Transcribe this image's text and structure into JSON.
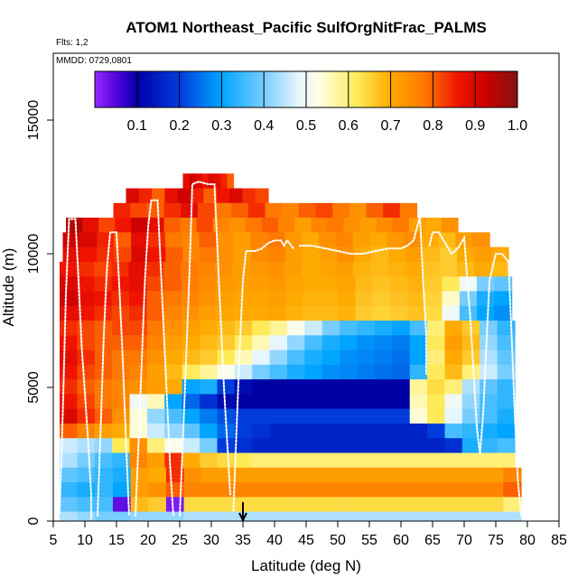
{
  "chart_data": {
    "type": "heatmap",
    "title": "ATOM1 Northeast_Pacific SulfOrgNitFrac_PALMS",
    "flights_label": "Flts: 1,2",
    "dates_label": "MMDD: 0729,0801",
    "xlabel": "Latitude (deg N)",
    "ylabel": "Altitude (m)",
    "xlim": [
      5,
      85
    ],
    "ylim": [
      0,
      17500
    ],
    "x_ticks": [
      "5",
      "10",
      "15",
      "20",
      "25",
      "30",
      "35",
      "40",
      "45",
      "50",
      "55",
      "60",
      "65",
      "70",
      "75",
      "80",
      "85"
    ],
    "y_ticks": [
      "0",
      "5000",
      "10000",
      "15000"
    ],
    "colorbar": {
      "range": [
        0.0,
        1.0
      ],
      "tick_labels": [
        "0.1",
        "0.2",
        "0.3",
        "0.4",
        "0.5",
        "0.6",
        "0.7",
        "0.8",
        "0.9",
        "1.0"
      ]
    },
    "marker": {
      "latitude": 35,
      "symbol": "arrow"
    },
    "rows": [
      {
        "alt": [
          12450,
          13000
        ],
        "lat": [
          25.5,
          33.5
        ],
        "vals": [
          0.88,
          0.92,
          0.9,
          0.86,
          0.9,
          0.88,
          0.85,
          0.8
        ]
      },
      {
        "alt": [
          11900,
          12450
        ],
        "lat": [
          16.5,
          39
        ],
        "vals": [
          0.9,
          0.85,
          0.8,
          0.88,
          0.92,
          0.85,
          0.8,
          0.86,
          0.9,
          0.84,
          0.82
        ]
      },
      {
        "alt": [
          11350,
          11900
        ],
        "lat": [
          14.5,
          62.5
        ],
        "vals": [
          0.85,
          0.82,
          0.8,
          0.84,
          0.88,
          0.82,
          0.78,
          0.8,
          0.84,
          0.78,
          0.76,
          0.8,
          0.82,
          0.78,
          0.74,
          0.8,
          0.84,
          0.78
        ]
      },
      {
        "alt": [
          10800,
          11350
        ],
        "lat": [
          7,
          69
        ],
        "vals": [
          0.95,
          0.88,
          0.82,
          0.86,
          0.92,
          0.88,
          0.8,
          0.78,
          0.82,
          0.76,
          0.74,
          0.78,
          0.8,
          0.76,
          0.72,
          0.76,
          0.78,
          0.74,
          0.72,
          0.75,
          0.78,
          0.72,
          0.7,
          0.74
        ]
      },
      {
        "alt": [
          10250,
          10800
        ],
        "lat": [
          6.5,
          74
        ],
        "vals": [
          0.92,
          0.9,
          0.85,
          0.8,
          0.88,
          0.84,
          0.78,
          0.76,
          0.8,
          0.74,
          0.72,
          0.76,
          0.78,
          0.73,
          0.7,
          0.74,
          0.76,
          0.72,
          0.7,
          0.73,
          0.75,
          0.7,
          0.68,
          0.72,
          0.74
        ]
      },
      {
        "alt": [
          9700,
          10250
        ],
        "lat": [
          6.5,
          77
        ],
        "vals": [
          0.88,
          0.86,
          0.84,
          0.82,
          0.9,
          0.86,
          0.8,
          0.76,
          0.78,
          0.74,
          0.72,
          0.75,
          0.76,
          0.72,
          0.7,
          0.72,
          0.74,
          0.7,
          0.68,
          0.7,
          0.72,
          0.68,
          0.66,
          0.7,
          0.72,
          0.7
        ]
      },
      {
        "alt": [
          9150,
          9700
        ],
        "lat": [
          6,
          77
        ],
        "vals": [
          0.86,
          0.84,
          0.82,
          0.84,
          0.88,
          0.84,
          0.8,
          0.78,
          0.76,
          0.74,
          0.72,
          0.73,
          0.74,
          0.72,
          0.7,
          0.71,
          0.72,
          0.69,
          0.68,
          0.69,
          0.7,
          0.67,
          0.66,
          0.68,
          0.7,
          0.68
        ]
      },
      {
        "alt": [
          8600,
          9150
        ],
        "lat": [
          6,
          77.5
        ],
        "vals": [
          0.9,
          0.86,
          0.84,
          0.86,
          0.88,
          0.82,
          0.8,
          0.77,
          0.75,
          0.73,
          0.72,
          0.72,
          0.73,
          0.71,
          0.7,
          0.7,
          0.71,
          0.68,
          0.67,
          0.68,
          0.69,
          0.66,
          0.62,
          0.5,
          0.4,
          0.38
        ]
      },
      {
        "alt": [
          8050,
          8600
        ],
        "lat": [
          6,
          77.5
        ],
        "vals": [
          0.92,
          0.88,
          0.86,
          0.84,
          0.86,
          0.8,
          0.78,
          0.76,
          0.74,
          0.72,
          0.71,
          0.71,
          0.72,
          0.7,
          0.69,
          0.69,
          0.7,
          0.67,
          0.66,
          0.67,
          0.68,
          0.65,
          0.55,
          0.4,
          0.32,
          0.3
        ]
      },
      {
        "alt": [
          7500,
          8050
        ],
        "lat": [
          6,
          77.5
        ],
        "vals": [
          0.88,
          0.86,
          0.84,
          0.82,
          0.84,
          0.8,
          0.76,
          0.74,
          0.72,
          0.71,
          0.7,
          0.7,
          0.71,
          0.69,
          0.68,
          0.68,
          0.69,
          0.66,
          0.65,
          0.66,
          0.67,
          0.64,
          0.5,
          0.36,
          0.3,
          0.28
        ]
      },
      {
        "alt": [
          6950,
          7500
        ],
        "lat": [
          6,
          78
        ],
        "vals": [
          0.84,
          0.82,
          0.8,
          0.82,
          0.82,
          0.78,
          0.74,
          0.72,
          0.7,
          0.68,
          0.66,
          0.62,
          0.58,
          0.52,
          0.46,
          0.4,
          0.36,
          0.34,
          0.32,
          0.3,
          0.36,
          0.6,
          0.7,
          0.66,
          0.4,
          0.34
        ]
      },
      {
        "alt": [
          6400,
          6950
        ],
        "lat": [
          6,
          78
        ],
        "vals": [
          0.86,
          0.82,
          0.8,
          0.8,
          0.8,
          0.76,
          0.72,
          0.7,
          0.68,
          0.66,
          0.62,
          0.56,
          0.48,
          0.42,
          0.36,
          0.32,
          0.3,
          0.28,
          0.27,
          0.26,
          0.3,
          0.62,
          0.72,
          0.68,
          0.42,
          0.36
        ]
      },
      {
        "alt": [
          5850,
          6400
        ],
        "lat": [
          6,
          78
        ],
        "vals": [
          0.88,
          0.84,
          0.8,
          0.78,
          0.78,
          0.74,
          0.7,
          0.68,
          0.66,
          0.62,
          0.56,
          0.48,
          0.42,
          0.36,
          0.32,
          0.3,
          0.28,
          0.27,
          0.26,
          0.25,
          0.3,
          0.6,
          0.7,
          0.66,
          0.44,
          0.38
        ]
      },
      {
        "alt": [
          5300,
          5850
        ],
        "lat": [
          6,
          78
        ],
        "vals": [
          0.86,
          0.82,
          0.8,
          0.78,
          0.76,
          0.72,
          0.68,
          0.62,
          0.58,
          0.52,
          0.46,
          0.4,
          0.36,
          0.32,
          0.3,
          0.28,
          0.27,
          0.26,
          0.25,
          0.24,
          0.34,
          0.62,
          0.68,
          0.6,
          0.46,
          0.4
        ]
      },
      {
        "alt": [
          4750,
          5300
        ],
        "lat": [
          6,
          78
        ],
        "vals": [
          0.84,
          0.8,
          0.78,
          0.76,
          0.74,
          0.72,
          0.7,
          0.3,
          0.32,
          0.2,
          0.12,
          0.1,
          0.1,
          0.1,
          0.1,
          0.1,
          0.1,
          0.1,
          0.1,
          0.1,
          0.58,
          0.64,
          0.6,
          0.44,
          0.38,
          0.34
        ]
      },
      {
        "alt": [
          4200,
          4750
        ],
        "lat": [
          6,
          78
        ],
        "vals": [
          0.86,
          0.82,
          0.78,
          0.76,
          0.5,
          0.56,
          0.3,
          0.24,
          0.18,
          0.12,
          0.1,
          0.1,
          0.1,
          0.1,
          0.1,
          0.1,
          0.1,
          0.1,
          0.1,
          0.1,
          0.56,
          0.62,
          0.5,
          0.42,
          0.36,
          0.34
        ]
      },
      {
        "alt": [
          3650,
          4200
        ],
        "lat": [
          6,
          78
        ],
        "vals": [
          0.9,
          0.84,
          0.8,
          0.74,
          0.54,
          0.42,
          0.36,
          0.3,
          0.26,
          0.22,
          0.2,
          0.2,
          0.2,
          0.2,
          0.2,
          0.2,
          0.2,
          0.2,
          0.2,
          0.2,
          0.54,
          0.62,
          0.48,
          0.4,
          0.36,
          0.32
        ]
      },
      {
        "alt": [
          3100,
          3650
        ],
        "lat": [
          6,
          78
        ],
        "vals": [
          0.8,
          0.76,
          0.72,
          0.7,
          0.54,
          0.46,
          0.42,
          0.38,
          0.3,
          0.24,
          0.2,
          0.18,
          0.16,
          0.16,
          0.16,
          0.16,
          0.16,
          0.16,
          0.16,
          0.16,
          0.16,
          0.2,
          0.36,
          0.34,
          0.32,
          0.3
        ]
      },
      {
        "alt": [
          2550,
          3100
        ],
        "lat": [
          6,
          78
        ],
        "vals": [
          0.46,
          0.44,
          0.42,
          0.62,
          0.74,
          0.6,
          0.52,
          0.46,
          0.4,
          0.2,
          0.18,
          0.16,
          0.16,
          0.16,
          0.16,
          0.16,
          0.16,
          0.16,
          0.16,
          0.16,
          0.16,
          0.16,
          0.18,
          0.32,
          0.34,
          0.36
        ]
      },
      {
        "alt": [
          2000,
          2550
        ],
        "lat": [
          6,
          78
        ],
        "vals": [
          0.44,
          0.4,
          0.36,
          0.34,
          0.76,
          0.72,
          0.84,
          0.7,
          0.66,
          0.64,
          0.62,
          0.6,
          0.6,
          0.6,
          0.6,
          0.6,
          0.6,
          0.6,
          0.6,
          0.6,
          0.6,
          0.6,
          0.6,
          0.6,
          0.6,
          0.6
        ]
      },
      {
        "alt": [
          1450,
          2000
        ],
        "lat": [
          6,
          79
        ],
        "vals": [
          0.38,
          0.36,
          0.34,
          0.32,
          0.72,
          0.7,
          0.84,
          0.74,
          0.72,
          0.72,
          0.72,
          0.72,
          0.72,
          0.72,
          0.72,
          0.72,
          0.72,
          0.72,
          0.72,
          0.72,
          0.72,
          0.72,
          0.72,
          0.72,
          0.72,
          0.76
        ]
      },
      {
        "alt": [
          900,
          1450
        ],
        "lat": [
          6,
          79
        ],
        "vals": [
          0.34,
          0.32,
          0.34,
          0.3,
          0.72,
          0.74,
          0.8,
          0.76,
          0.76,
          0.76,
          0.76,
          0.76,
          0.76,
          0.76,
          0.76,
          0.76,
          0.76,
          0.76,
          0.76,
          0.76,
          0.76,
          0.76,
          0.76,
          0.76,
          0.76,
          0.8
        ]
      },
      {
        "alt": [
          350,
          900
        ],
        "lat": [
          6,
          79
        ],
        "vals": [
          0.38,
          0.36,
          0.36,
          0.04,
          0.68,
          0.66,
          0.02,
          0.64,
          0.64,
          0.64,
          0.64,
          0.64,
          0.64,
          0.64,
          0.64,
          0.64,
          0.64,
          0.64,
          0.64,
          0.64,
          0.64,
          0.64,
          0.64,
          0.64,
          0.64,
          0.6
        ]
      },
      {
        "alt": [
          0,
          350
        ],
        "lat": [
          6,
          79
        ],
        "vals": [
          0.44,
          0.42,
          0.4,
          0.4,
          0.42,
          0.42,
          0.42,
          0.44,
          0.44,
          0.44,
          0.44,
          0.44,
          0.44,
          0.44,
          0.44,
          0.44,
          0.44,
          0.44,
          0.44,
          0.44,
          0.44,
          0.44,
          0.44,
          0.44,
          0.44,
          0.44
        ]
      }
    ],
    "flight_tracks": [
      [
        [
          6,
          300
        ],
        [
          6.5,
          4000
        ],
        [
          7,
          8500
        ],
        [
          7.5,
          11300
        ],
        [
          8.5,
          11300
        ],
        [
          9,
          9000
        ],
        [
          9.5,
          6500
        ],
        [
          10,
          4800
        ],
        [
          10.5,
          3000
        ],
        [
          11,
          1000
        ],
        [
          11,
          100
        ]
      ],
      [
        [
          12,
          200
        ],
        [
          12.5,
          3500
        ],
        [
          13,
          7000
        ],
        [
          13.5,
          9500
        ],
        [
          14,
          10800
        ],
        [
          15,
          10800
        ],
        [
          15.5,
          8500
        ],
        [
          16,
          6000
        ],
        [
          16.5,
          3000
        ],
        [
          17,
          200
        ]
      ],
      [
        [
          18,
          200
        ],
        [
          18.5,
          3000
        ],
        [
          19,
          6000
        ],
        [
          19.5,
          9000
        ],
        [
          20,
          11000
        ],
        [
          20.5,
          12000
        ],
        [
          21.5,
          12000
        ],
        [
          22,
          9500
        ],
        [
          22.5,
          7000
        ],
        [
          23,
          4500
        ],
        [
          23.5,
          2000
        ],
        [
          24,
          200
        ]
      ],
      [
        [
          25,
          200
        ],
        [
          25.5,
          3000
        ],
        [
          26,
          6000
        ],
        [
          26.5,
          9000
        ],
        [
          27,
          12600
        ],
        [
          28,
          12700
        ],
        [
          29.5,
          12600
        ],
        [
          30.5,
          12600
        ],
        [
          31,
          10000
        ],
        [
          31.5,
          7500
        ],
        [
          32,
          5000
        ],
        [
          32.5,
          3000
        ],
        [
          33,
          1000
        ]
      ],
      [
        [
          33.5,
          400
        ],
        [
          34,
          3500
        ],
        [
          34.5,
          6500
        ],
        [
          35,
          9000
        ],
        [
          35.5,
          10100
        ],
        [
          37,
          10100
        ],
        [
          38,
          10200
        ],
        [
          39,
          10400
        ],
        [
          40,
          10500
        ],
        [
          41,
          10500
        ],
        [
          41.5,
          10300
        ],
        [
          42,
          10500
        ],
        [
          43,
          10200
        ]
      ],
      [
        [
          44,
          10300
        ],
        [
          46,
          10300
        ],
        [
          48,
          10200
        ],
        [
          50,
          10100
        ],
        [
          52,
          10000
        ],
        [
          54,
          10000
        ],
        [
          56,
          10100
        ],
        [
          58,
          10200
        ],
        [
          60,
          10200
        ],
        [
          61,
          10300
        ],
        [
          62,
          10500
        ],
        [
          63,
          11400
        ],
        [
          63.5,
          9000
        ],
        [
          64,
          7000
        ],
        [
          64,
          5500
        ]
      ],
      [
        [
          64.5,
          10300
        ],
        [
          65,
          10800
        ],
        [
          66,
          10800
        ],
        [
          67,
          10400
        ],
        [
          68,
          10000
        ],
        [
          69,
          10200
        ],
        [
          70,
          10600
        ],
        [
          70.5,
          9000
        ],
        [
          71,
          7500
        ],
        [
          71.5,
          5500
        ],
        [
          72,
          3500
        ],
        [
          72.5,
          2500
        ],
        [
          73,
          4000
        ],
        [
          73.5,
          6500
        ],
        [
          74,
          9000
        ],
        [
          75,
          10000
        ],
        [
          76,
          10000
        ],
        [
          77,
          9700
        ],
        [
          77.5,
          7000
        ],
        [
          78,
          4000
        ],
        [
          78.5,
          1500
        ],
        [
          79,
          200
        ]
      ]
    ]
  }
}
